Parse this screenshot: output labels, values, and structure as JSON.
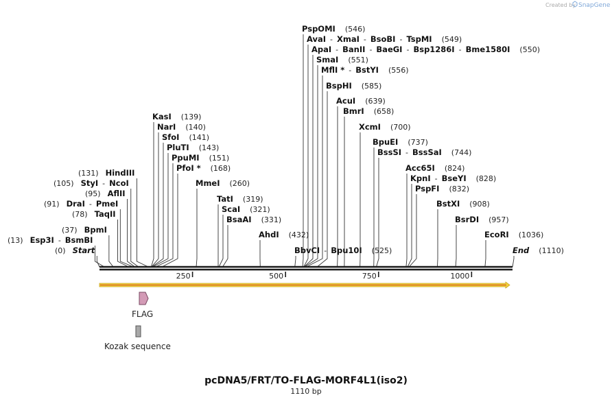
{
  "credit": {
    "prefix": "Created by",
    "brand": "SnapGene",
    "icon": "snapgene-logo-icon"
  },
  "construct": {
    "name": "pcDNA5/FRT/TO-FLAG-MORF4L1(iso2)",
    "length_label": "1110 bp",
    "length_bp": 1110
  },
  "ruler": {
    "ticks": [
      {
        "bp": 250,
        "label": "250"
      },
      {
        "bp": 500,
        "label": "500"
      },
      {
        "bp": 750,
        "label": "750"
      },
      {
        "bp": 1000,
        "label": "1000"
      }
    ]
  },
  "colors": {
    "backbone": "#1a1a1a",
    "orf_fill": "#f2d43c",
    "orf_stroke": "#c8a020",
    "orf_line": "#d05a1e",
    "flag_fill": "#d39bb6",
    "flag_stroke": "#7a4a63",
    "kozak_fill": "#a9a9a9",
    "kozak_stroke": "#555555",
    "leader": "#333333"
  },
  "sites": [
    {
      "names": [
        "Start"
      ],
      "pos": "(0)",
      "bp": 0,
      "side": "left",
      "italic": true
    },
    {
      "names": [
        "Esp3I",
        "BsmBI"
      ],
      "pos": "(13)",
      "bp": 13,
      "side": "left"
    },
    {
      "names": [
        "BpmI"
      ],
      "pos": "(37)",
      "bp": 37,
      "side": "left"
    },
    {
      "names": [
        "TaqII"
      ],
      "pos": "(78)",
      "bp": 78,
      "side": "left"
    },
    {
      "names": [
        "DraI",
        "PmeI"
      ],
      "pos": "(91)",
      "bp": 91,
      "side": "left"
    },
    {
      "names": [
        "AflII"
      ],
      "pos": "(95)",
      "bp": 95,
      "side": "left"
    },
    {
      "names": [
        "StyI",
        "NcoI"
      ],
      "pos": "(105)",
      "bp": 105,
      "side": "left"
    },
    {
      "names": [
        "HindIII"
      ],
      "pos": "(131)",
      "bp": 131,
      "side": "left"
    },
    {
      "names": [
        "KasI"
      ],
      "pos": "(139)",
      "bp": 139,
      "side": "right"
    },
    {
      "names": [
        "NarI"
      ],
      "pos": "(140)",
      "bp": 140,
      "side": "right"
    },
    {
      "names": [
        "SfoI"
      ],
      "pos": "(141)",
      "bp": 141,
      "side": "right"
    },
    {
      "names": [
        "PluTI"
      ],
      "pos": "(143)",
      "bp": 143,
      "side": "right"
    },
    {
      "names": [
        "PpuMI"
      ],
      "pos": "(151)",
      "bp": 151,
      "side": "right"
    },
    {
      "names": [
        "PfoI *"
      ],
      "pos": "(168)",
      "bp": 168,
      "side": "right"
    },
    {
      "names": [
        "MmeI"
      ],
      "pos": "(260)",
      "bp": 260,
      "side": "right"
    },
    {
      "names": [
        "TatI"
      ],
      "pos": "(319)",
      "bp": 319,
      "side": "right"
    },
    {
      "names": [
        "ScaI"
      ],
      "pos": "(321)",
      "bp": 321,
      "side": "right"
    },
    {
      "names": [
        "BsaAI"
      ],
      "pos": "(331)",
      "bp": 331,
      "side": "right"
    },
    {
      "names": [
        "AhdI"
      ],
      "pos": "(432)",
      "bp": 432,
      "side": "right"
    },
    {
      "names": [
        "BbvCI",
        "Bpu10I"
      ],
      "pos": "(525)",
      "bp": 525,
      "side": "right"
    },
    {
      "names": [
        "PspOMI"
      ],
      "pos": "(546)",
      "bp": 546,
      "side": "right"
    },
    {
      "names": [
        "AvaI",
        "XmaI",
        "BsoBI",
        "TspMI"
      ],
      "pos": "(549)",
      "bp": 549,
      "side": "right"
    },
    {
      "names": [
        "ApaI",
        "BanII",
        "BaeGI",
        "Bsp1286I",
        "Bme1580I"
      ],
      "pos": "(550)",
      "bp": 550,
      "side": "right"
    },
    {
      "names": [
        "SmaI"
      ],
      "pos": "(551)",
      "bp": 551,
      "side": "right"
    },
    {
      "names": [
        "MflI *",
        "BstYI"
      ],
      "pos": "(556)",
      "bp": 556,
      "side": "right"
    },
    {
      "names": [
        "BspHI"
      ],
      "pos": "(585)",
      "bp": 585,
      "side": "right"
    },
    {
      "names": [
        "AcuI"
      ],
      "pos": "(639)",
      "bp": 639,
      "side": "right"
    },
    {
      "names": [
        "BmrI"
      ],
      "pos": "(658)",
      "bp": 658,
      "side": "right"
    },
    {
      "names": [
        "XcmI"
      ],
      "pos": "(700)",
      "bp": 700,
      "side": "right"
    },
    {
      "names": [
        "BpuEI"
      ],
      "pos": "(737)",
      "bp": 737,
      "side": "right"
    },
    {
      "names": [
        "BssSI",
        "BssSaI"
      ],
      "pos": "(744)",
      "bp": 744,
      "side": "right"
    },
    {
      "names": [
        "Acc65I"
      ],
      "pos": "(824)",
      "bp": 824,
      "side": "right"
    },
    {
      "names": [
        "KpnI",
        "BseYI"
      ],
      "pos": "(828)",
      "bp": 828,
      "side": "right"
    },
    {
      "names": [
        "PspFI"
      ],
      "pos": "(832)",
      "bp": 832,
      "side": "right"
    },
    {
      "names": [
        "BstXI"
      ],
      "pos": "(908)",
      "bp": 908,
      "side": "right"
    },
    {
      "names": [
        "BsrDI"
      ],
      "pos": "(957)",
      "bp": 957,
      "side": "right"
    },
    {
      "names": [
        "EcoRI"
      ],
      "pos": "(1036)",
      "bp": 1036,
      "side": "right"
    },
    {
      "names": [
        "End"
      ],
      "pos": "(1110)",
      "bp": 1110,
      "side": "right",
      "italic": true
    }
  ],
  "features": [
    {
      "name": "FLAG",
      "type": "tag",
      "start_bp": 104,
      "end_bp": 128
    },
    {
      "name": "Kozak sequence",
      "type": "kozak",
      "start_bp": 101,
      "end_bp": 111
    }
  ]
}
